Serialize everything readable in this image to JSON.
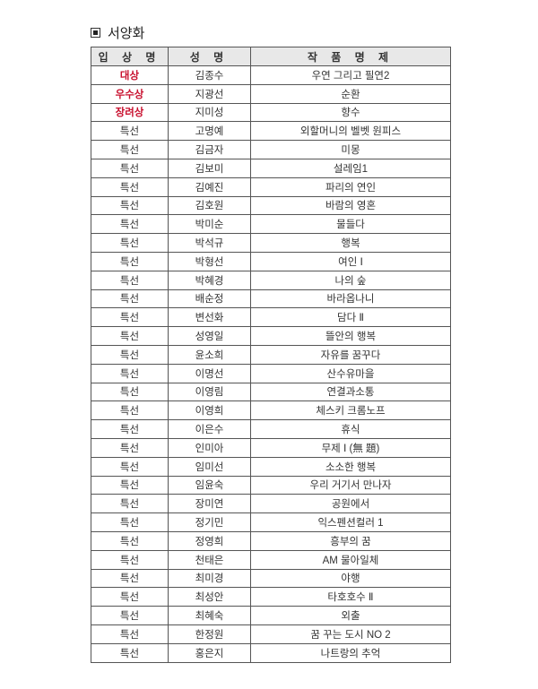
{
  "section_title": "서양화",
  "table": {
    "headers": [
      "입 상 명",
      "성 명",
      "작 품 명 제"
    ],
    "rows": [
      {
        "award": "대상",
        "name": "김종수",
        "title": "우연 그리고 필연2",
        "highlight": true
      },
      {
        "award": "우수상",
        "name": "지광선",
        "title": "순환",
        "highlight": true
      },
      {
        "award": "장려상",
        "name": "지미성",
        "title": "향수",
        "highlight": true
      },
      {
        "award": "특선",
        "name": "고명예",
        "title": "외할머니의 벨벳 원피스"
      },
      {
        "award": "특선",
        "name": "김금자",
        "title": "미몽"
      },
      {
        "award": "특선",
        "name": "김보미",
        "title": "설레임1"
      },
      {
        "award": "특선",
        "name": "김예진",
        "title": "파리의 연인"
      },
      {
        "award": "특선",
        "name": "김호원",
        "title": "바람의 영혼"
      },
      {
        "award": "특선",
        "name": "박미순",
        "title": "물들다"
      },
      {
        "award": "특선",
        "name": "박석규",
        "title": "행복"
      },
      {
        "award": "특선",
        "name": "박형선",
        "title": "여인 Ⅰ"
      },
      {
        "award": "특선",
        "name": "박혜경",
        "title": "나의 숲"
      },
      {
        "award": "특선",
        "name": "배순정",
        "title": "바라옵나니"
      },
      {
        "award": "특선",
        "name": "변선화",
        "title": "담다 Ⅱ"
      },
      {
        "award": "특선",
        "name": "성영일",
        "title": "뜰안의 행복"
      },
      {
        "award": "특선",
        "name": "윤소희",
        "title": "자유를 꿈꾸다"
      },
      {
        "award": "특선",
        "name": "이명선",
        "title": "산수유마을"
      },
      {
        "award": "특선",
        "name": "이영림",
        "title": "연결과소통"
      },
      {
        "award": "특선",
        "name": "이영희",
        "title": "체스키 크롬노프"
      },
      {
        "award": "특선",
        "name": "이은수",
        "title": "휴식"
      },
      {
        "award": "특선",
        "name": "인미아",
        "title": "무제 Ⅰ (無 題)"
      },
      {
        "award": "특선",
        "name": "임미선",
        "title": "소소한 행복"
      },
      {
        "award": "특선",
        "name": "임윤숙",
        "title": "우리 거기서 만나자"
      },
      {
        "award": "특선",
        "name": "장미연",
        "title": "공원에서"
      },
      {
        "award": "특선",
        "name": "정기민",
        "title": "익스펜션컬러 1"
      },
      {
        "award": "특선",
        "name": "정영희",
        "title": "흥부의 꿈"
      },
      {
        "award": "특선",
        "name": "천태은",
        "title": "AM 물아일체"
      },
      {
        "award": "특선",
        "name": "최미경",
        "title": "야행"
      },
      {
        "award": "특선",
        "name": "최성안",
        "title": "타호호수 Ⅱ"
      },
      {
        "award": "특선",
        "name": "최혜숙",
        "title": "외출"
      },
      {
        "award": "특선",
        "name": "한정원",
        "title": "꿈 꾸는 도시 NO 2"
      },
      {
        "award": "특선",
        "name": "홍은지",
        "title": "나트랑의 추억"
      }
    ]
  },
  "colors": {
    "highlight_award": "#c8102e",
    "header_bg": "#e8e8e8"
  }
}
